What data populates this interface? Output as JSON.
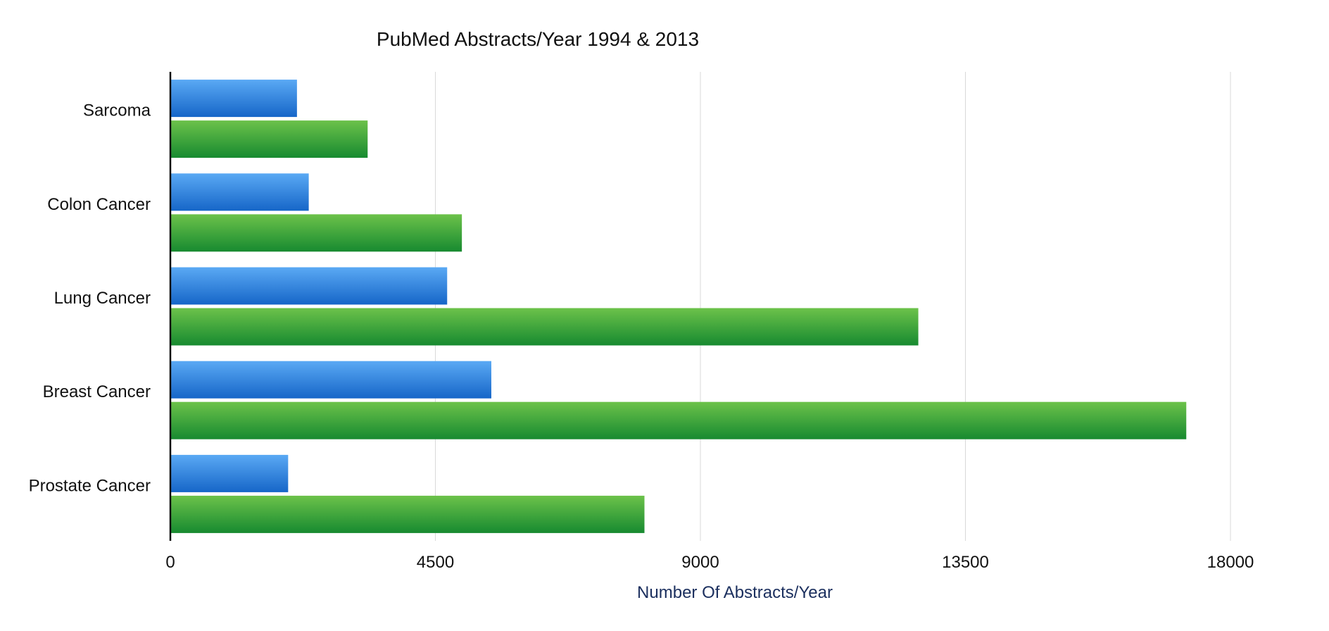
{
  "chart_data": {
    "type": "bar",
    "orientation": "horizontal",
    "title": "PubMed Abstracts/Year 1994 & 2013",
    "xlabel": "Number Of Abstracts/Year",
    "ylabel": "",
    "xlim": [
      0,
      18000
    ],
    "xticks": [
      "0",
      "4500",
      "9000",
      "13500",
      "18000"
    ],
    "categories": [
      "Sarcoma",
      "Colon Cancer",
      "Lung Cancer",
      "Breast Cancer",
      "Prostate Cancer"
    ],
    "series": [
      {
        "values": [
          2150,
          2350,
          4700,
          5450,
          2000
        ],
        "color": "#1f6fd1"
      },
      {
        "values": [
          3350,
          4950,
          12700,
          17250,
          8050
        ],
        "color": "#2b9a3a"
      }
    ],
    "grid": true,
    "legend": "none",
    "xlabel_color": "#1b2f5e"
  }
}
